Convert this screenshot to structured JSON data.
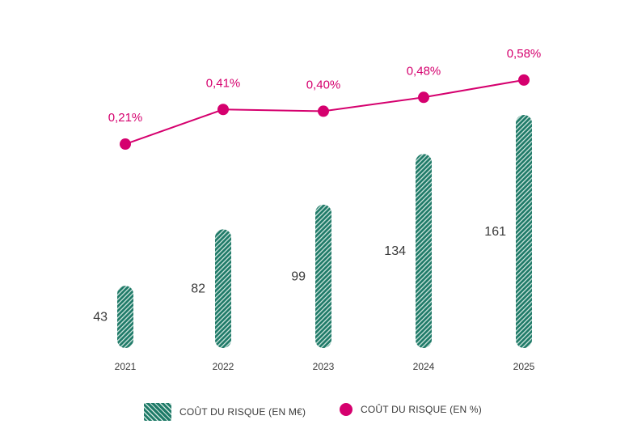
{
  "chart_data": {
    "type": "bar+line",
    "categories": [
      "2021",
      "2022",
      "2023",
      "2024",
      "2025"
    ],
    "series": [
      {
        "name": "COÛT DU RISQUE (EN M€)",
        "type": "bar",
        "values": [
          43,
          82,
          99,
          134,
          161
        ],
        "labels": [
          "43",
          "82",
          "99",
          "134",
          "161"
        ]
      },
      {
        "name": "COÛT DU RISQUE (EN %)",
        "type": "line",
        "values": [
          0.21,
          0.41,
          0.4,
          0.48,
          0.58
        ],
        "labels": [
          "0,21%",
          "0,41%",
          "0,40%",
          "0,48%",
          "0,58%"
        ]
      }
    ],
    "grid": false,
    "legend_position": "bottom",
    "colors": {
      "bar": "#1f7a68",
      "bar_hatch": "#cfe6df",
      "line": "#d5006e",
      "text": "#3a3a3a"
    }
  }
}
